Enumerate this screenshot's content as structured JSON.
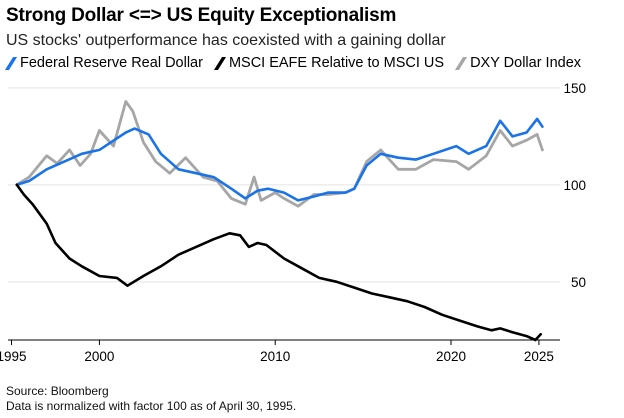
{
  "title": "Strong Dollar <=> US Equity Exceptionalism",
  "subtitle": "US stocks' outperformance has coexisted with a gaining dollar",
  "legend": [
    {
      "label": "Federal Reserve Real Dollar",
      "color": "#1a73e8"
    },
    {
      "label": "MSCI EAFE Relative to MSCI US",
      "color": "#000000"
    },
    {
      "label": "DXY Dollar Index",
      "color": "#a6a6a6"
    }
  ],
  "footer": {
    "source": "Source: Bloomberg",
    "note": "Data is normalized with factor 100 as of April 30, 1995."
  },
  "chart_data": {
    "type": "line",
    "title": "Strong Dollar <=> US Equity Exceptionalism",
    "subtitle": "US stocks' outperformance has coexisted with a gaining dollar",
    "xlabel": "",
    "ylabel": "",
    "x_ticks": [
      1995,
      2000,
      2010,
      2020,
      2025
    ],
    "y_ticks": [
      50,
      100,
      150
    ],
    "xlim": [
      1994.8,
      2026.2
    ],
    "ylim": [
      20,
      152
    ],
    "y_axis_side": "right",
    "grid": "horizontal",
    "legend_position": "top",
    "series": [
      {
        "name": "Federal Reserve Real Dollar",
        "color": "#1a73e8",
        "x": [
          1995.3,
          1996.0,
          1997.0,
          1998.0,
          1999.0,
          2000.0,
          2001.0,
          2001.5,
          2002.0,
          2002.8,
          2003.5,
          2004.5,
          2005.5,
          2006.5,
          2007.5,
          2008.3,
          2009.0,
          2009.6,
          2010.5,
          2011.3,
          2012.2,
          2013.0,
          2014.0,
          2014.5,
          2015.2,
          2016.0,
          2017.0,
          2018.0,
          2019.0,
          2020.3,
          2021.0,
          2022.0,
          2022.8,
          2023.5,
          2024.3,
          2024.9,
          2025.2
        ],
        "y": [
          100,
          102,
          108,
          112,
          116,
          118,
          124,
          127,
          129,
          126,
          116,
          108,
          106,
          104,
          98,
          93,
          97,
          98,
          96,
          92,
          94,
          96,
          96,
          98,
          110,
          116,
          114,
          113,
          116,
          120,
          116,
          120,
          133,
          125,
          127,
          134,
          130
        ]
      },
      {
        "name": "MSCI EAFE Relative to MSCI US",
        "color": "#000000",
        "x": [
          1995.3,
          1995.7,
          1996.2,
          1997.0,
          1997.5,
          1998.3,
          1999.0,
          2000.0,
          2001.0,
          2001.6,
          2002.5,
          2003.5,
          2004.5,
          2005.5,
          2006.5,
          2007.4,
          2008.0,
          2008.5,
          2009.0,
          2009.5,
          2010.5,
          2011.5,
          2012.5,
          2013.5,
          2014.5,
          2015.5,
          2016.5,
          2017.5,
          2018.5,
          2019.5,
          2020.5,
          2021.5,
          2022.3,
          2022.8,
          2023.5,
          2024.3,
          2024.8,
          2025.1
        ],
        "y": [
          100,
          95,
          90,
          80,
          70,
          62,
          58,
          53,
          52,
          48,
          53,
          58,
          64,
          68,
          72,
          75,
          74,
          68,
          70,
          69,
          62,
          57,
          52,
          50,
          47,
          44,
          42,
          40,
          37,
          33,
          30,
          27,
          25,
          26,
          24,
          22,
          20,
          23
        ]
      },
      {
        "name": "DXY Dollar Index",
        "color": "#a6a6a6",
        "x": [
          1995.3,
          1996.0,
          1997.0,
          1997.6,
          1998.3,
          1998.9,
          1999.5,
          2000.0,
          2000.8,
          2001.5,
          2001.9,
          2002.5,
          2003.2,
          2004.0,
          2004.9,
          2005.9,
          2006.7,
          2007.5,
          2008.3,
          2008.8,
          2009.2,
          2010.0,
          2010.5,
          2011.3,
          2012.2,
          2013.0,
          2014.0,
          2014.5,
          2015.2,
          2016.0,
          2017.0,
          2018.0,
          2019.0,
          2020.3,
          2021.0,
          2022.0,
          2022.8,
          2023.5,
          2024.3,
          2024.9,
          2025.2
        ],
        "y": [
          100,
          104,
          115,
          111,
          118,
          110,
          116,
          128,
          120,
          143,
          138,
          122,
          112,
          106,
          114,
          104,
          102,
          93,
          90,
          104,
          92,
          96,
          93,
          89,
          95,
          95,
          96,
          98,
          112,
          118,
          108,
          108,
          113,
          112,
          108,
          115,
          128,
          120,
          123,
          126,
          118
        ]
      }
    ]
  }
}
